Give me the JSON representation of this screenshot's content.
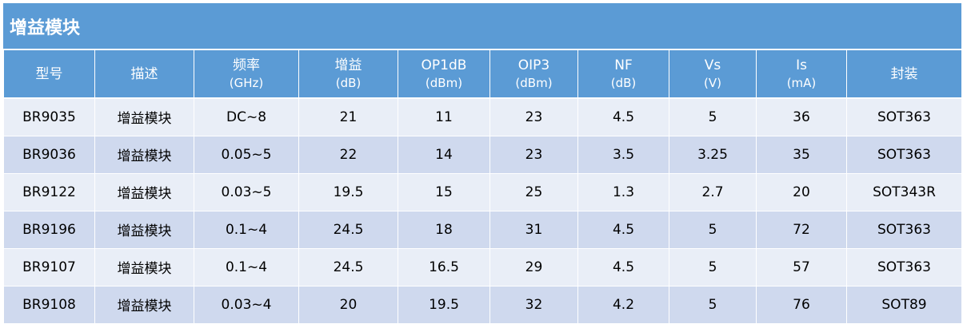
{
  "title": "增益模块",
  "colors": {
    "header_bg": "#5b9bd5",
    "row_light": "#e9eef7",
    "row_dark": "#cfd9ee",
    "header_text": "#ffffff"
  },
  "table": {
    "headers": [
      {
        "label": "型号",
        "unit": ""
      },
      {
        "label": "描述",
        "unit": ""
      },
      {
        "label": "频率",
        "unit": "(GHz)"
      },
      {
        "label": "增益",
        "unit": "(dB)"
      },
      {
        "label": "OP1dB",
        "unit": "(dBm)"
      },
      {
        "label": "OIP3",
        "unit": "(dBm)"
      },
      {
        "label": "NF",
        "unit": "(dB)"
      },
      {
        "label": "Vs",
        "unit": "(V)"
      },
      {
        "label": "Is",
        "unit": "(mA)"
      },
      {
        "label": "封装",
        "unit": ""
      }
    ],
    "rows": [
      [
        "BR9035",
        "增益模块",
        "DC~8",
        "21",
        "11",
        "23",
        "4.5",
        "5",
        "36",
        "SOT363"
      ],
      [
        "BR9036",
        "增益模块",
        "0.05~5",
        "22",
        "14",
        "23",
        "3.5",
        "3.25",
        "35",
        "SOT363"
      ],
      [
        "BR9122",
        "增益模块",
        "0.03~5",
        "19.5",
        "15",
        "25",
        "1.3",
        "2.7",
        "20",
        "SOT343R"
      ],
      [
        "BR9196",
        "增益模块",
        "0.1~4",
        "24.5",
        "18",
        "31",
        "4.5",
        "5",
        "72",
        "SOT363"
      ],
      [
        "BR9107",
        "增益模块",
        "0.1~4",
        "24.5",
        "16.5",
        "29",
        "4.5",
        "5",
        "57",
        "SOT363"
      ],
      [
        "BR9108",
        "增益模块",
        "0.03~4",
        "20",
        "19.5",
        "32",
        "4.2",
        "5",
        "76",
        "SOT89"
      ]
    ]
  }
}
